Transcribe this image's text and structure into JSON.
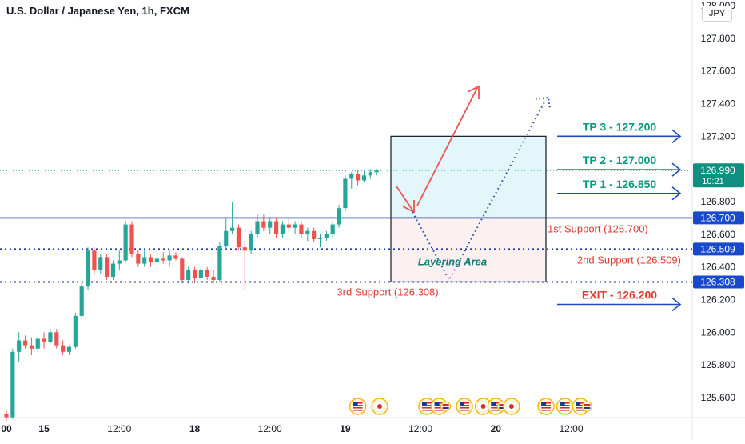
{
  "header": {
    "title": "U.S. Dollar / Japanese Yen, 1h, FXCM",
    "currency_button": "JPY"
  },
  "chart_data": {
    "type": "candlestick",
    "title": "U.S. Dollar / Japanese Yen, 1h, FXCM",
    "y_axis": {
      "range": [
        125.45,
        128.0
      ],
      "ticks": [
        "128.000",
        "127.800",
        "127.600",
        "127.400",
        "127.200",
        "127.000",
        "126.800",
        "126.600",
        "126.400",
        "126.200",
        "126.000",
        "125.800",
        "125.600"
      ]
    },
    "x_axis": {
      "ticks": [
        {
          "label": "00",
          "x": 0
        },
        {
          "label": "15",
          "x": 6
        },
        {
          "label": "12:00",
          "x": 18
        },
        {
          "label": "18",
          "x": 30
        },
        {
          "label": "12:00",
          "x": 42
        },
        {
          "label": "19",
          "x": 54
        },
        {
          "label": "12:00",
          "x": 66
        },
        {
          "label": "20",
          "x": 78
        },
        {
          "label": "12:00",
          "x": 90
        }
      ]
    },
    "last_price": {
      "value": "126.990",
      "countdown": "10:21"
    },
    "candles": [
      [
        125.5,
        125.52,
        125.46,
        125.48
      ],
      [
        125.48,
        125.9,
        125.47,
        125.88
      ],
      [
        125.88,
        126.0,
        125.82,
        125.95
      ],
      [
        125.95,
        125.98,
        125.9,
        125.92
      ],
      [
        125.92,
        125.97,
        125.86,
        125.9
      ],
      [
        125.9,
        125.97,
        125.88,
        125.96
      ],
      [
        125.96,
        126.0,
        125.9,
        125.94
      ],
      [
        125.94,
        126.02,
        125.93,
        126.0
      ],
      [
        126.0,
        126.02,
        125.9,
        125.92
      ],
      [
        125.92,
        125.95,
        125.86,
        125.88
      ],
      [
        125.88,
        125.92,
        125.86,
        125.91
      ],
      [
        125.91,
        126.12,
        125.9,
        126.1
      ],
      [
        126.1,
        126.3,
        126.08,
        126.28
      ],
      [
        126.28,
        126.52,
        126.26,
        126.5
      ],
      [
        126.5,
        126.52,
        126.36,
        126.38
      ],
      [
        126.38,
        126.48,
        126.36,
        126.46
      ],
      [
        126.46,
        126.48,
        126.32,
        126.34
      ],
      [
        126.34,
        126.44,
        126.32,
        126.42
      ],
      [
        126.42,
        126.5,
        126.38,
        126.44
      ],
      [
        126.44,
        126.68,
        126.43,
        126.66
      ],
      [
        126.66,
        126.68,
        126.46,
        126.48
      ],
      [
        126.48,
        126.5,
        126.4,
        126.42
      ],
      [
        126.42,
        126.5,
        126.4,
        126.46
      ],
      [
        126.46,
        126.48,
        126.4,
        126.43
      ],
      [
        126.43,
        126.48,
        126.38,
        126.45
      ],
      [
        126.45,
        126.49,
        126.42,
        126.44
      ],
      [
        126.44,
        126.5,
        126.4,
        126.47
      ],
      [
        126.47,
        126.49,
        126.44,
        126.45
      ],
      [
        126.45,
        126.46,
        126.3,
        126.32
      ],
      [
        126.32,
        126.4,
        126.3,
        126.38
      ],
      [
        126.38,
        126.4,
        126.3,
        126.33
      ],
      [
        126.33,
        126.4,
        126.31,
        126.38
      ],
      [
        126.38,
        126.4,
        126.32,
        126.34
      ],
      [
        126.34,
        126.38,
        126.3,
        126.32
      ],
      [
        126.32,
        126.55,
        126.31,
        126.53
      ],
      [
        126.53,
        126.7,
        126.5,
        126.62
      ],
      [
        126.62,
        126.8,
        126.6,
        126.64
      ],
      [
        126.64,
        126.66,
        126.5,
        126.52
      ],
      [
        126.52,
        126.56,
        126.26,
        126.5
      ],
      [
        126.5,
        126.62,
        126.48,
        126.6
      ],
      [
        126.6,
        126.72,
        126.58,
        126.68
      ],
      [
        126.68,
        126.72,
        126.62,
        126.64
      ],
      [
        126.64,
        126.7,
        126.6,
        126.68
      ],
      [
        126.68,
        126.7,
        126.58,
        126.6
      ],
      [
        126.6,
        126.68,
        126.58,
        126.66
      ],
      [
        126.66,
        126.7,
        126.62,
        126.64
      ],
      [
        126.64,
        126.68,
        126.6,
        126.66
      ],
      [
        126.66,
        126.68,
        126.58,
        126.6
      ],
      [
        126.6,
        126.64,
        126.56,
        126.62
      ],
      [
        126.62,
        126.64,
        126.55,
        126.57
      ],
      [
        126.57,
        126.6,
        126.52,
        126.58
      ],
      [
        126.58,
        126.62,
        126.56,
        126.6
      ],
      [
        126.6,
        126.68,
        126.58,
        126.66
      ],
      [
        126.66,
        126.78,
        126.64,
        126.76
      ],
      [
        126.76,
        126.96,
        126.74,
        126.94
      ],
      [
        126.94,
        126.98,
        126.88,
        126.97
      ],
      [
        126.97,
        126.99,
        126.9,
        126.93
      ],
      [
        126.93,
        126.99,
        126.92,
        126.96
      ],
      [
        126.96,
        127.0,
        126.94,
        126.98
      ],
      [
        126.98,
        127.0,
        126.96,
        126.99
      ]
    ],
    "levels": [
      {
        "label": "1st Support (126.700)",
        "value": 126.7,
        "tag": "126.700",
        "style": "solid"
      },
      {
        "label": "2nd Support (126.509)",
        "value": 126.509,
        "tag": "126.509",
        "style": "dotted"
      },
      {
        "label": "3rd Support (126.308)",
        "value": 126.308,
        "tag": "126.308",
        "style": "dotted"
      }
    ],
    "targets": [
      {
        "label": "TP 3 - 127.200",
        "value": 127.2
      },
      {
        "label": "TP 2 - 127.000",
        "value": 127.0
      },
      {
        "label": "TP 1 - 126.850",
        "value": 126.85
      }
    ],
    "exit": {
      "label": "EXIT - 126.200",
      "value": 126.2
    },
    "zone_label": "Layering Area",
    "zone": {
      "top": 127.2,
      "mid": 126.7,
      "bottom": 126.308
    },
    "event_icons": [
      {
        "type": "us-flag",
        "x": 56
      },
      {
        "type": "jp-flag",
        "x": 59.5
      },
      {
        "type": "us-flag",
        "x": 67
      },
      {
        "type": "multi-flag",
        "x": 69
      },
      {
        "type": "us-flag",
        "x": 73
      },
      {
        "type": "jp-flag",
        "x": 76
      },
      {
        "type": "multi-flag",
        "x": 78
      },
      {
        "type": "jp-flag",
        "x": 80.5
      },
      {
        "type": "us-flag",
        "x": 86
      },
      {
        "type": "us-flag",
        "x": 89
      },
      {
        "type": "multi-flag",
        "x": 91.5
      }
    ],
    "colors": {
      "up": "#26a69a",
      "down": "#ef5350",
      "support_line": "#1e3a9e",
      "tp_text": "#089981",
      "support_text": "#e53935",
      "arrow_blue": "#1e4bb8",
      "zone_top_fill": "#e3f6fa",
      "zone_bottom_fill": "#fdf0f0",
      "price_tag": "#1848cc",
      "last_price_tag": "#0e8f80"
    }
  }
}
